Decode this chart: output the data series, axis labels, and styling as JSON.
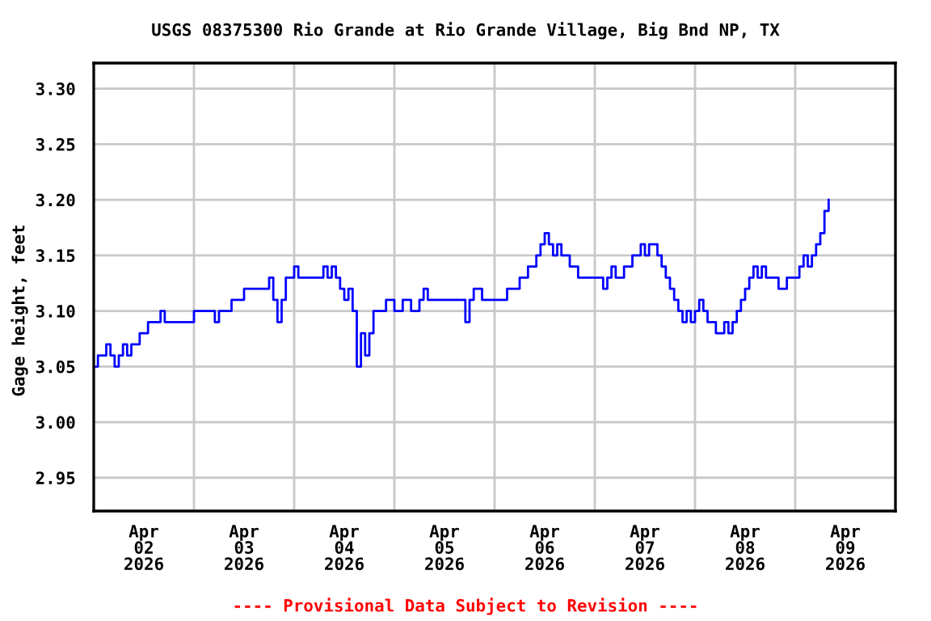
{
  "chart_data": {
    "type": "step",
    "title": "USGS 08375300 Rio Grande at Rio Grande Village, Big Bnd NP, TX",
    "ylabel": "Gage height, feet",
    "annotations": [
      "---- Provisional Data Subject to Revision ----"
    ],
    "x": [
      "2026-04-02T00:00",
      "2026-04-02T01:00",
      "2026-04-02T03:00",
      "2026-04-02T04:00",
      "2026-04-02T05:00",
      "2026-04-02T06:00",
      "2026-04-02T07:00",
      "2026-04-02T08:00",
      "2026-04-02T09:00",
      "2026-04-02T11:00",
      "2026-04-02T13:00",
      "2026-04-02T16:00",
      "2026-04-02T17:00",
      "2026-04-03T00:00",
      "2026-04-03T04:00",
      "2026-04-03T05:00",
      "2026-04-03T06:00",
      "2026-04-03T09:00",
      "2026-04-03T12:00",
      "2026-04-03T18:00",
      "2026-04-03T19:00",
      "2026-04-03T20:00",
      "2026-04-03T21:00",
      "2026-04-03T22:00",
      "2026-04-04T00:00",
      "2026-04-04T01:00",
      "2026-04-04T07:00",
      "2026-04-04T08:00",
      "2026-04-04T09:00",
      "2026-04-04T10:00",
      "2026-04-04T11:00",
      "2026-04-04T12:00",
      "2026-04-04T13:00",
      "2026-04-04T14:00",
      "2026-04-04T15:00",
      "2026-04-04T16:00",
      "2026-04-04T17:00",
      "2026-04-04T18:00",
      "2026-04-04T19:00",
      "2026-04-04T22:00",
      "2026-04-05T00:00",
      "2026-04-05T02:00",
      "2026-04-05T04:00",
      "2026-04-05T06:00",
      "2026-04-05T07:00",
      "2026-04-05T08:00",
      "2026-04-05T16:00",
      "2026-04-05T17:00",
      "2026-04-05T18:00",
      "2026-04-05T19:00",
      "2026-04-05T21:00",
      "2026-04-06T03:00",
      "2026-04-06T06:00",
      "2026-04-06T08:00",
      "2026-04-06T10:00",
      "2026-04-06T11:00",
      "2026-04-06T12:00",
      "2026-04-06T13:00",
      "2026-04-06T14:00",
      "2026-04-06T15:00",
      "2026-04-06T16:00",
      "2026-04-06T18:00",
      "2026-04-06T20:00",
      "2026-04-07T01:00",
      "2026-04-07T02:00",
      "2026-04-07T03:00",
      "2026-04-07T04:00",
      "2026-04-07T05:00",
      "2026-04-07T07:00",
      "2026-04-07T09:00",
      "2026-04-07T11:00",
      "2026-04-07T12:00",
      "2026-04-07T13:00",
      "2026-04-07T15:00",
      "2026-04-07T16:00",
      "2026-04-07T17:00",
      "2026-04-07T18:00",
      "2026-04-07T19:00",
      "2026-04-07T20:00",
      "2026-04-07T21:00",
      "2026-04-07T22:00",
      "2026-04-07T23:00",
      "2026-04-08T00:00",
      "2026-04-08T01:00",
      "2026-04-08T02:00",
      "2026-04-08T03:00",
      "2026-04-08T05:00",
      "2026-04-08T07:00",
      "2026-04-08T08:00",
      "2026-04-08T09:00",
      "2026-04-08T10:00",
      "2026-04-08T11:00",
      "2026-04-08T12:00",
      "2026-04-08T13:00",
      "2026-04-08T14:00",
      "2026-04-08T15:00",
      "2026-04-08T16:00",
      "2026-04-08T17:00",
      "2026-04-08T20:00",
      "2026-04-08T22:00",
      "2026-04-09T01:00",
      "2026-04-09T02:00",
      "2026-04-09T03:00",
      "2026-04-09T04:00",
      "2026-04-09T05:00",
      "2026-04-09T06:00",
      "2026-04-09T07:00",
      "2026-04-09T08:00"
    ],
    "series": [
      {
        "color": "#0000ff",
        "values": [
          3.05,
          3.06,
          3.07,
          3.06,
          3.05,
          3.06,
          3.07,
          3.06,
          3.07,
          3.08,
          3.09,
          3.1,
          3.09,
          3.1,
          3.1,
          3.09,
          3.1,
          3.11,
          3.12,
          3.13,
          3.11,
          3.09,
          3.11,
          3.13,
          3.14,
          3.13,
          3.14,
          3.13,
          3.14,
          3.13,
          3.12,
          3.11,
          3.12,
          3.1,
          3.05,
          3.08,
          3.06,
          3.08,
          3.1,
          3.11,
          3.1,
          3.11,
          3.1,
          3.11,
          3.12,
          3.11,
          3.11,
          3.09,
          3.11,
          3.12,
          3.11,
          3.12,
          3.13,
          3.14,
          3.15,
          3.16,
          3.17,
          3.16,
          3.15,
          3.16,
          3.15,
          3.14,
          3.13,
          3.13,
          3.12,
          3.13,
          3.14,
          3.13,
          3.14,
          3.15,
          3.16,
          3.15,
          3.16,
          3.15,
          3.14,
          3.13,
          3.12,
          3.11,
          3.1,
          3.09,
          3.1,
          3.09,
          3.1,
          3.11,
          3.1,
          3.09,
          3.08,
          3.09,
          3.08,
          3.09,
          3.1,
          3.11,
          3.12,
          3.13,
          3.14,
          3.13,
          3.14,
          3.13,
          3.12,
          3.13,
          3.14,
          3.15,
          3.14,
          3.15,
          3.16,
          3.17,
          3.19,
          3.2
        ]
      }
    ],
    "xlim": [
      "2026-04-02T00:00",
      "2026-04-10T00:00"
    ],
    "xticks": [
      {
        "value": "2026-04-02T12:00",
        "label": "Apr\n02\n2026"
      },
      {
        "value": "2026-04-03T00:00",
        "label": null
      },
      {
        "value": "2026-04-03T12:00",
        "label": "Apr\n03\n2026"
      },
      {
        "value": "2026-04-04T00:00",
        "label": null
      },
      {
        "value": "2026-04-04T12:00",
        "label": "Apr\n04\n2026"
      },
      {
        "value": "2026-04-05T00:00",
        "label": null
      },
      {
        "value": "2026-04-05T12:00",
        "label": "Apr\n05\n2026"
      },
      {
        "value": "2026-04-06T00:00",
        "label": null
      },
      {
        "value": "2026-04-06T12:00",
        "label": "Apr\n06\n2026"
      },
      {
        "value": "2026-04-07T00:00",
        "label": null
      },
      {
        "value": "2026-04-07T12:00",
        "label": "Apr\n07\n2026"
      },
      {
        "value": "2026-04-08T00:00",
        "label": null
      },
      {
        "value": "2026-04-08T12:00",
        "label": "Apr\n08\n2026"
      },
      {
        "value": "2026-04-09T00:00",
        "label": null
      },
      {
        "value": "2026-04-09T12:00",
        "label": "Apr\n09\n2026"
      }
    ],
    "ylim": [
      2.92,
      3.323
    ],
    "yticks": [
      {
        "value": 2.95,
        "label": "2.95"
      },
      {
        "value": 3.0,
        "label": "3.00"
      },
      {
        "value": 3.05,
        "label": "3.05"
      },
      {
        "value": 3.1,
        "label": "3.10"
      },
      {
        "value": 3.15,
        "label": "3.15"
      },
      {
        "value": 3.2,
        "label": "3.20"
      },
      {
        "value": 3.25,
        "label": "3.25"
      },
      {
        "value": 3.3,
        "label": "3.30"
      }
    ],
    "grid": true,
    "legend": false
  }
}
